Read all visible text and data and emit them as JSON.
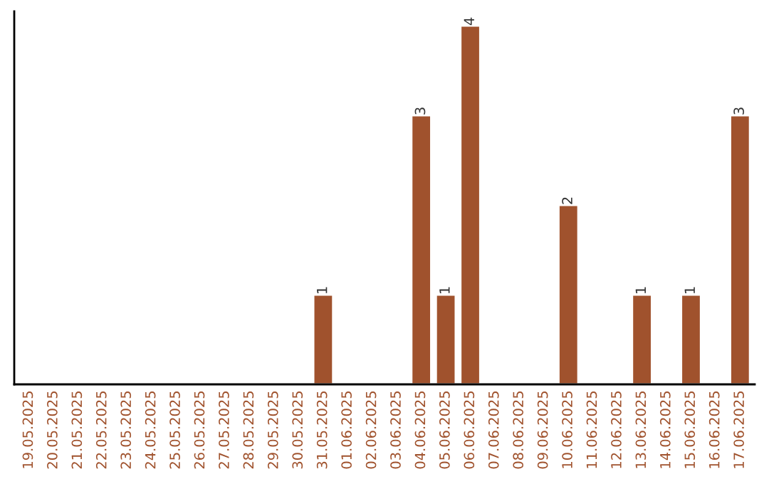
{
  "chart_data": {
    "type": "bar",
    "categories": [
      "19.05.2025",
      "20.05.2025",
      "21.05.2025",
      "22.05.2025",
      "23.05.2025",
      "24.05.2025",
      "25.05.2025",
      "26.05.2025",
      "27.05.2025",
      "28.05.2025",
      "29.05.2025",
      "30.05.2025",
      "31.05.2025",
      "01.06.2025",
      "02.06.2025",
      "03.06.2025",
      "04.06.2025",
      "05.06.2025",
      "06.06.2025",
      "07.06.2025",
      "08.06.2025",
      "09.06.2025",
      "10.06.2025",
      "11.06.2025",
      "12.06.2025",
      "13.06.2025",
      "14.06.2025",
      "15.06.2025",
      "16.06.2025",
      "17.06.2025"
    ],
    "values": [
      null,
      null,
      null,
      null,
      null,
      null,
      null,
      null,
      null,
      null,
      null,
      null,
      1,
      null,
      null,
      null,
      3,
      1,
      4,
      null,
      null,
      null,
      2,
      null,
      null,
      1,
      null,
      1,
      null,
      3
    ],
    "value_labels": [
      null,
      null,
      null,
      null,
      null,
      null,
      null,
      null,
      null,
      null,
      null,
      null,
      "1",
      null,
      null,
      null,
      "3",
      "1",
      "4",
      null,
      null,
      null,
      "2",
      null,
      null,
      "1",
      null,
      "1",
      null,
      "3"
    ],
    "color": "#a0522d",
    "tick_labels": "x",
    "grid": false,
    "legend": false
  }
}
